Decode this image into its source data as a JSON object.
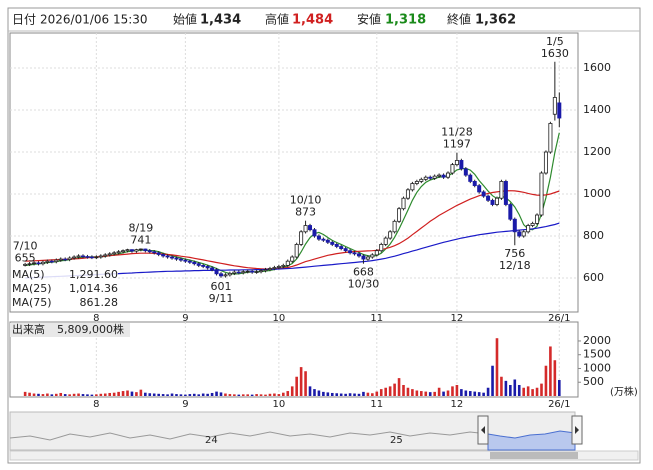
{
  "header": {
    "date_label": "日付",
    "date": "2026/01/06 15:30",
    "open_label": "始値",
    "open": "1,434",
    "high_label": "高値",
    "high": "1,484",
    "low_label": "安値",
    "low": "1,318",
    "close_label": "終値",
    "close": "1,362"
  },
  "chart_data": {
    "type": "candlestick",
    "xlim": [
      -3.4,
      124.2
    ],
    "xticks": [
      {
        "value": 16,
        "label": "8"
      },
      {
        "value": 36,
        "label": "9"
      },
      {
        "value": 57,
        "label": "10"
      },
      {
        "value": 79,
        "label": "11"
      },
      {
        "value": 97,
        "label": "12"
      },
      {
        "value": 120,
        "label": "26/1"
      }
    ],
    "ylim": [
      438,
      1767
    ],
    "yticks": [
      600,
      800,
      1000,
      1200,
      1400,
      1600
    ],
    "grid": true,
    "up_color": "#ffffff",
    "down_color": "#1a1aa8",
    "open": [
      660,
      665,
      668,
      672,
      668,
      675,
      680,
      678,
      685,
      690,
      688,
      695,
      700,
      705,
      702,
      700,
      698,
      700,
      705,
      710,
      715,
      720,
      725,
      730,
      735,
      728,
      735,
      738,
      730,
      725,
      720,
      712,
      705,
      700,
      695,
      690,
      685,
      680,
      675,
      668,
      660,
      655,
      648,
      640,
      620,
      610,
      615,
      622,
      628,
      625,
      630,
      632,
      628,
      630,
      635,
      640,
      645,
      650,
      655,
      660,
      680,
      700,
      760,
      820,
      850,
      830,
      800,
      785,
      780,
      770,
      760,
      750,
      740,
      730,
      720,
      715,
      705,
      690,
      700,
      710,
      730,
      760,
      790,
      820,
      870,
      930,
      980,
      1020,
      1050,
      1060,
      1070,
      1080,
      1075,
      1085,
      1090,
      1080,
      1100,
      1140,
      1160,
      1120,
      1090,
      1060,
      1040,
      1010,
      990,
      970,
      950,
      980,
      1060,
      950,
      880,
      820,
      800,
      820,
      850,
      860,
      900,
      1100,
      1200,
      1380,
      1434
    ],
    "high": [
      672,
      676,
      680,
      680,
      683,
      688,
      688,
      693,
      698,
      698,
      703,
      708,
      713,
      713,
      710,
      708,
      708,
      713,
      718,
      723,
      728,
      733,
      736,
      739,
      737,
      739,
      741,
      740,
      738,
      733,
      728,
      720,
      713,
      708,
      703,
      698,
      693,
      688,
      683,
      676,
      668,
      663,
      656,
      648,
      628,
      623,
      630,
      636,
      636,
      638,
      640,
      640,
      638,
      643,
      648,
      653,
      658,
      663,
      668,
      688,
      708,
      768,
      828,
      873,
      858,
      838,
      808,
      793,
      788,
      778,
      768,
      758,
      748,
      738,
      728,
      723,
      713,
      708,
      718,
      738,
      768,
      798,
      828,
      878,
      938,
      988,
      1028,
      1058,
      1068,
      1078,
      1088,
      1088,
      1093,
      1098,
      1098,
      1108,
      1148,
      1197,
      1168,
      1128,
      1098,
      1068,
      1048,
      1018,
      998,
      978,
      988,
      1068,
      1068,
      958,
      888,
      828,
      828,
      858,
      868,
      908,
      1108,
      1208,
      1344,
      1630,
      1484
    ],
    "low": [
      655,
      657,
      660,
      660,
      660,
      667,
      670,
      670,
      677,
      680,
      680,
      687,
      692,
      694,
      692,
      690,
      690,
      692,
      697,
      702,
      707,
      712,
      717,
      722,
      720,
      720,
      727,
      722,
      717,
      712,
      704,
      697,
      692,
      687,
      682,
      677,
      672,
      667,
      660,
      652,
      647,
      640,
      632,
      612,
      601,
      602,
      607,
      614,
      617,
      617,
      622,
      620,
      620,
      622,
      627,
      632,
      637,
      642,
      647,
      652,
      672,
      692,
      752,
      812,
      822,
      792,
      777,
      772,
      762,
      752,
      742,
      732,
      722,
      712,
      707,
      697,
      668,
      682,
      692,
      702,
      722,
      752,
      782,
      812,
      862,
      922,
      972,
      1012,
      1042,
      1052,
      1062,
      1067,
      1067,
      1077,
      1072,
      1072,
      1092,
      1132,
      1112,
      1082,
      1052,
      1032,
      1002,
      982,
      962,
      942,
      942,
      972,
      942,
      872,
      756,
      792,
      792,
      812,
      842,
      852,
      892,
      1092,
      1192,
      1350,
      1318
    ],
    "close": [
      665,
      668,
      672,
      668,
      675,
      680,
      678,
      685,
      690,
      688,
      695,
      700,
      705,
      702,
      700,
      698,
      700,
      705,
      710,
      715,
      720,
      725,
      730,
      735,
      728,
      735,
      738,
      730,
      725,
      720,
      712,
      705,
      700,
      695,
      690,
      685,
      680,
      675,
      668,
      660,
      655,
      648,
      640,
      620,
      610,
      615,
      622,
      628,
      625,
      630,
      632,
      628,
      630,
      635,
      640,
      645,
      650,
      655,
      660,
      680,
      700,
      760,
      820,
      850,
      830,
      800,
      785,
      780,
      770,
      760,
      750,
      740,
      730,
      720,
      715,
      705,
      690,
      700,
      710,
      730,
      760,
      790,
      820,
      870,
      930,
      980,
      1020,
      1050,
      1060,
      1070,
      1080,
      1075,
      1085,
      1090,
      1080,
      1100,
      1140,
      1160,
      1120,
      1090,
      1060,
      1040,
      1010,
      990,
      970,
      950,
      980,
      1060,
      950,
      880,
      820,
      800,
      820,
      850,
      860,
      900,
      1100,
      1200,
      1336,
      1460,
      1362
    ],
    "series": [
      {
        "name": "MA(5)",
        "color": "#2e8b2e",
        "legend_label": "1,291.60",
        "values": [
          660,
          662,
          665,
          667,
          670,
          673,
          675,
          677,
          682,
          684,
          687,
          692,
          696,
          698,
          700,
          701,
          701,
          701,
          703,
          706,
          710,
          715,
          720,
          725,
          728,
          731,
          733,
          733,
          731,
          730,
          725,
          718,
          712,
          706,
          700,
          695,
          690,
          685,
          680,
          674,
          668,
          661,
          654,
          645,
          635,
          627,
          621,
          619,
          620,
          624,
          627,
          629,
          629,
          631,
          633,
          636,
          640,
          645,
          650,
          658,
          669,
          691,
          724,
          762,
          792,
          812,
          817,
          807,
          793,
          779,
          769,
          760,
          750,
          740,
          731,
          722,
          712,
          706,
          704,
          707,
          718,
          738,
          762,
          794,
          834,
          878,
          924,
          970,
          1008,
          1036,
          1056,
          1067,
          1074,
          1080,
          1082,
          1086,
          1099,
          1115,
          1120,
          1122,
          1114,
          1094,
          1064,
          1040,
          1014,
          992,
          978,
          990,
          982,
          964,
          938,
          902,
          854,
          834,
          830,
          846,
          906,
          982,
          1079,
          1199,
          1291.6
        ]
      },
      {
        "name": "MA(25)",
        "color": "#d02020",
        "legend_label": "1,014.36",
        "values": [
          680,
          681,
          682,
          683,
          684,
          685,
          686,
          687,
          688,
          689,
          690,
          691,
          692,
          694,
          696,
          698,
          700,
          702,
          704,
          706,
          708,
          710,
          712,
          714,
          716,
          717,
          718,
          718,
          718,
          717,
          716,
          714,
          712,
          710,
          707,
          704,
          701,
          698,
          694,
          690,
          686,
          682,
          678,
          674,
          670,
          666,
          662,
          658,
          655,
          652,
          649,
          647,
          645,
          644,
          643,
          643,
          644,
          645,
          647,
          650,
          655,
          662,
          670,
          678,
          684,
          690,
          696,
          702,
          708,
          712,
          716,
          719,
          722,
          724,
          726,
          727,
          728,
          729,
          730,
          732,
          735,
          740,
          746,
          754,
          764,
          776,
          790,
          806,
          822,
          838,
          854,
          870,
          884,
          898,
          910,
          922,
          934,
          946,
          956,
          966,
          976,
          984,
          992,
          998,
          1003,
          1007,
          1010,
          1013,
          1015,
          1016,
          1015,
          1012,
          1008,
          1003,
          998,
          995,
          994,
          996,
          1000,
          1007,
          1014.36
        ]
      },
      {
        "name": "MA(75)",
        "color": "#1a1ac8",
        "legend_label": "861.28",
        "values": [
          600,
          601,
          602,
          603,
          604,
          605,
          606,
          607,
          608,
          609,
          610,
          611,
          612,
          613,
          614,
          615,
          616,
          617,
          618,
          619,
          620,
          621,
          622,
          623,
          624,
          625,
          626,
          627,
          628,
          629,
          630,
          631,
          632,
          632,
          633,
          633,
          634,
          634,
          635,
          635,
          636,
          636,
          636,
          637,
          637,
          637,
          638,
          638,
          638,
          639,
          639,
          639,
          640,
          640,
          641,
          641,
          642,
          643,
          644,
          645,
          646,
          648,
          650,
          652,
          654,
          656,
          658,
          660,
          662,
          664,
          666,
          668,
          670,
          672,
          674,
          676,
          678,
          680,
          683,
          686,
          690,
          694,
          699,
          704,
          710,
          716,
          722,
          728,
          734,
          740,
          746,
          752,
          758,
          764,
          770,
          775,
          780,
          785,
          790,
          794,
          798,
          802,
          806,
          809,
          812,
          815,
          818,
          820,
          822,
          824,
          826,
          828,
          830,
          832,
          834,
          837,
          841,
          845,
          850,
          855,
          861.28
        ]
      }
    ],
    "annotations": [
      {
        "date": "7/10",
        "value": 655,
        "x": 0,
        "position": "above"
      },
      {
        "date": "8/19",
        "value": 741,
        "x": 26,
        "position": "above"
      },
      {
        "date": "9/11",
        "value": 601,
        "x": 44,
        "position": "below"
      },
      {
        "date": "10/10",
        "value": 873,
        "x": 63,
        "position": "above"
      },
      {
        "date": "10/30",
        "value": 668,
        "x": 76,
        "position": "below"
      },
      {
        "date": "11/28",
        "value": 1197,
        "x": 97,
        "position": "above"
      },
      {
        "date": "12/18",
        "value": 756,
        "x": 110,
        "position": "below"
      },
      {
        "date": "1/5",
        "value": 1630,
        "x": 119,
        "position": "above"
      }
    ],
    "volume": {
      "title": "出来高",
      "label": "5,809,000株",
      "unit_label": "(万株)",
      "up_color": "#d42a2a",
      "down_color": "#1a1aa8",
      "ylim": [
        0,
        2580
      ],
      "yticks": [
        500,
        1000,
        1500,
        2000
      ],
      "values": [
        150,
        120,
        90,
        80,
        70,
        90,
        60,
        80,
        110,
        70,
        60,
        80,
        90,
        70,
        60,
        50,
        60,
        80,
        90,
        110,
        120,
        150,
        180,
        200,
        160,
        140,
        230,
        120,
        100,
        90,
        80,
        70,
        60,
        90,
        70,
        60,
        50,
        70,
        80,
        60,
        90,
        80,
        110,
        160,
        130,
        90,
        70,
        60,
        50,
        60,
        60,
        50,
        70,
        60,
        50,
        80,
        90,
        70,
        120,
        180,
        350,
        700,
        1050,
        900,
        350,
        250,
        200,
        150,
        130,
        110,
        100,
        90,
        80,
        100,
        90,
        80,
        150,
        120,
        100,
        160,
        250,
        300,
        350,
        450,
        650,
        400,
        300,
        250,
        200,
        180,
        160,
        140,
        150,
        300,
        160,
        200,
        350,
        400,
        250,
        200,
        180,
        160,
        140,
        120,
        300,
        1100,
        2100,
        700,
        550,
        400,
        600,
        400,
        300,
        350,
        250,
        300,
        450,
        1100,
        1800,
        1300,
        580.9
      ]
    }
  },
  "navigator": {
    "labels": [
      "24",
      "25"
    ]
  }
}
